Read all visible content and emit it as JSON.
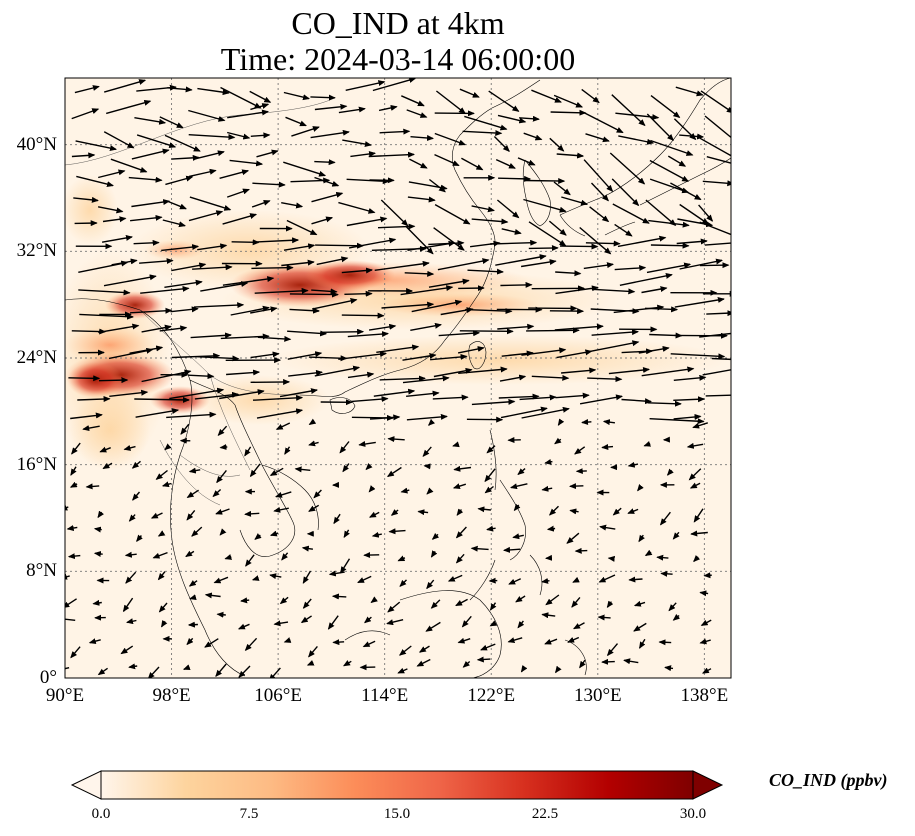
{
  "title_line1": "CO_IND at 4km",
  "title_line2": "Time: 2024-03-14 06:00:00",
  "map": {
    "lon_range": [
      90,
      140
    ],
    "lat_range": [
      0,
      45
    ],
    "lat_ticks": [
      {
        "value": 0,
        "label": "0°"
      },
      {
        "value": 8,
        "label": "8°N"
      },
      {
        "value": 16,
        "label": "16°N"
      },
      {
        "value": 24,
        "label": "24°N"
      },
      {
        "value": 32,
        "label": "32°N"
      },
      {
        "value": 40,
        "label": "40°N"
      }
    ],
    "lon_ticks": [
      {
        "value": 90,
        "label": "90°E"
      },
      {
        "value": 98,
        "label": "98°E"
      },
      {
        "value": 106,
        "label": "106°E"
      },
      {
        "value": 114,
        "label": "114°E"
      },
      {
        "value": 122,
        "label": "122°E"
      },
      {
        "value": 130,
        "label": "130°E"
      },
      {
        "value": 138,
        "label": "138°E"
      }
    ],
    "gridlines": true,
    "background_color": "#fff4e6"
  },
  "colorbar": {
    "label": "CO_IND (ppbv)",
    "min": 0,
    "max": 30,
    "ticks": [
      "0.0",
      "7.5",
      "15.0",
      "22.5",
      "30.0"
    ],
    "colors": [
      "#fff5eb",
      "#fdd49e",
      "#fdbb84",
      "#fc8d59",
      "#ef6548",
      "#d7301f",
      "#b30000",
      "#7f0000"
    ],
    "extend": "both"
  }
}
